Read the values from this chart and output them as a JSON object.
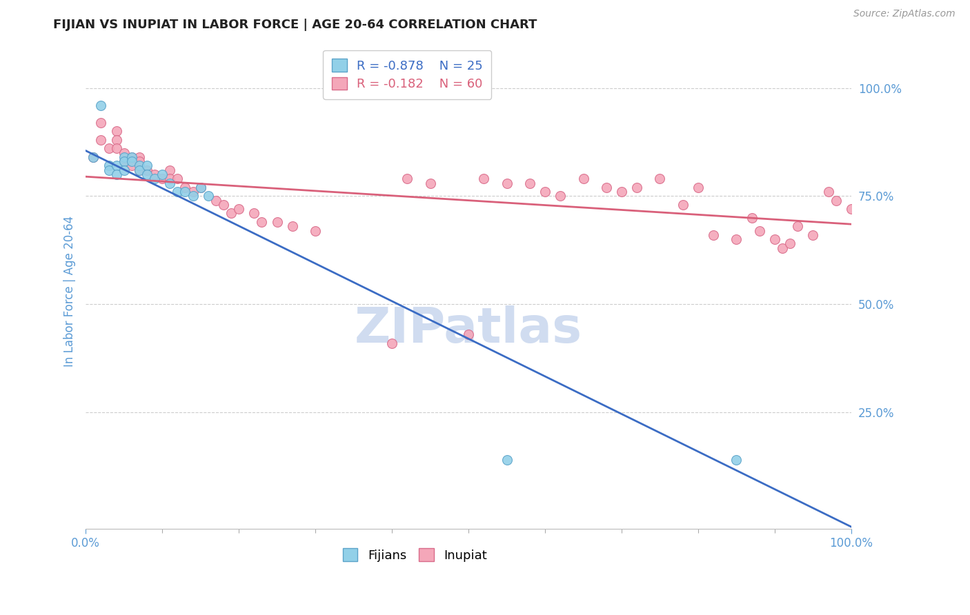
{
  "title": "FIJIAN VS INUPIAT IN LABOR FORCE | AGE 20-64 CORRELATION CHART",
  "source": "Source: ZipAtlas.com",
  "ylabel": "In Labor Force | Age 20-64",
  "xlim": [
    0.0,
    1.0
  ],
  "ylim": [
    -0.02,
    1.08
  ],
  "ytick_values": [
    0.25,
    0.5,
    0.75,
    1.0
  ],
  "ytick_labels": [
    "25.0%",
    "50.0%",
    "75.0%",
    "100.0%"
  ],
  "xtick_major": [
    0.0,
    1.0
  ],
  "xtick_major_labels": [
    "0.0%",
    "100.0%"
  ],
  "xtick_minor": [
    0.1,
    0.2,
    0.3,
    0.4,
    0.5,
    0.6,
    0.7,
    0.8,
    0.9
  ],
  "fijian_color": "#92D0E8",
  "inupiat_color": "#F4A7B9",
  "fijian_edge": "#5BA3C9",
  "inupiat_edge": "#D96B8A",
  "trend_fijian_color": "#3B6CC4",
  "trend_inupiat_color": "#D9607A",
  "legend_r_fijian": "R = -0.878",
  "legend_n_fijian": "N = 25",
  "legend_r_inupiat": "R = -0.182",
  "legend_n_inupiat": "N = 60",
  "fijian_x": [
    0.01,
    0.02,
    0.03,
    0.03,
    0.04,
    0.04,
    0.05,
    0.05,
    0.05,
    0.06,
    0.06,
    0.07,
    0.07,
    0.08,
    0.08,
    0.09,
    0.1,
    0.11,
    0.12,
    0.13,
    0.14,
    0.15,
    0.16,
    0.55,
    0.85
  ],
  "fijian_y": [
    0.84,
    0.96,
    0.82,
    0.81,
    0.82,
    0.8,
    0.84,
    0.83,
    0.81,
    0.84,
    0.83,
    0.82,
    0.81,
    0.82,
    0.8,
    0.79,
    0.8,
    0.78,
    0.76,
    0.76,
    0.75,
    0.77,
    0.75,
    0.14,
    0.14
  ],
  "inupiat_x": [
    0.01,
    0.02,
    0.02,
    0.03,
    0.04,
    0.04,
    0.04,
    0.05,
    0.05,
    0.06,
    0.06,
    0.07,
    0.07,
    0.07,
    0.08,
    0.09,
    0.1,
    0.11,
    0.11,
    0.12,
    0.13,
    0.14,
    0.15,
    0.17,
    0.18,
    0.19,
    0.2,
    0.22,
    0.23,
    0.25,
    0.27,
    0.3,
    0.4,
    0.42,
    0.45,
    0.5,
    0.52,
    0.55,
    0.58,
    0.6,
    0.62,
    0.65,
    0.68,
    0.7,
    0.72,
    0.75,
    0.78,
    0.8,
    0.82,
    0.85,
    0.87,
    0.88,
    0.9,
    0.91,
    0.92,
    0.93,
    0.95,
    0.97,
    0.98,
    1.0
  ],
  "inupiat_y": [
    0.84,
    0.92,
    0.88,
    0.86,
    0.9,
    0.88,
    0.86,
    0.85,
    0.83,
    0.84,
    0.82,
    0.84,
    0.83,
    0.81,
    0.81,
    0.8,
    0.79,
    0.81,
    0.79,
    0.79,
    0.77,
    0.76,
    0.77,
    0.74,
    0.73,
    0.71,
    0.72,
    0.71,
    0.69,
    0.69,
    0.68,
    0.67,
    0.41,
    0.79,
    0.78,
    0.43,
    0.79,
    0.78,
    0.78,
    0.76,
    0.75,
    0.79,
    0.77,
    0.76,
    0.77,
    0.79,
    0.73,
    0.77,
    0.66,
    0.65,
    0.7,
    0.67,
    0.65,
    0.63,
    0.64,
    0.68,
    0.66,
    0.76,
    0.74,
    0.72
  ],
  "fijian_trend_x": [
    0.0,
    1.0
  ],
  "fijian_trend_y": [
    0.855,
    -0.015
  ],
  "inupiat_trend_x": [
    0.0,
    1.0
  ],
  "inupiat_trend_y": [
    0.795,
    0.685
  ],
  "grid_color": "#CCCCCC",
  "grid_linestyle": "--",
  "watermark_text": "ZIPatlas",
  "watermark_color": "#D0DCF0",
  "background_color": "#FFFFFF",
  "title_color": "#222222",
  "axis_label_color": "#5B9BD5",
  "tick_label_color": "#5B9BD5",
  "title_fontsize": 13,
  "source_fontsize": 10,
  "tick_fontsize": 12,
  "ylabel_fontsize": 12,
  "legend_fontsize": 13,
  "scatter_size": 100,
  "trend_linewidth": 2.0
}
